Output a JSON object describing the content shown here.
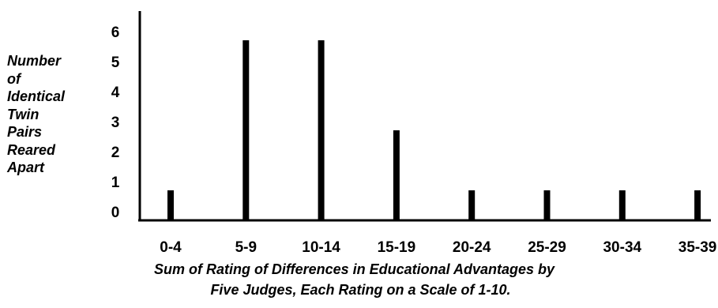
{
  "chart_data": {
    "type": "bar",
    "title": "",
    "categories": [
      "0-4",
      "5-9",
      "10-14",
      "15-19",
      "20-24",
      "25-29",
      "30-34",
      "35-39"
    ],
    "values": [
      1,
      6,
      6,
      3,
      1,
      1,
      1,
      1
    ],
    "ylim": [
      0,
      6
    ],
    "yticks": [
      "0",
      "1",
      "2",
      "3",
      "4",
      "5",
      "6"
    ],
    "ylabel_lines": [
      "Number",
      "of",
      "Identical",
      "Twin",
      "Pairs",
      "Reared",
      "Apart"
    ],
    "xlabel_lines": [
      "Sum of Rating of Differences in Educational Advantages by",
      "Five Judges, Each Rating on a Scale of 1-10."
    ],
    "grid": false,
    "legend": "none",
    "bar_color": "#000000"
  }
}
